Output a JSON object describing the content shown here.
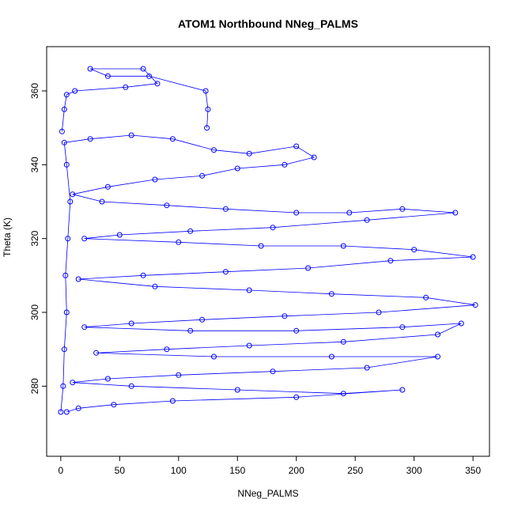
{
  "chart_data": {
    "type": "scatter",
    "title": "ATOM1 Northbound NNeg_PALMS",
    "xlabel": "NNeg_PALMS",
    "ylabel": "Theta (K)",
    "xlim": [
      -12,
      364
    ],
    "ylim": [
      261,
      372
    ],
    "xticks": [
      0,
      50,
      100,
      150,
      200,
      250,
      300,
      350
    ],
    "yticks": [
      280,
      300,
      320,
      340,
      360
    ],
    "grid": false,
    "legend": "none",
    "marker": "open-circle",
    "connected": true,
    "color": "#0000ff",
    "series": [
      {
        "values": [
          {
            "x": 0,
            "y": 273
          },
          {
            "x": 2,
            "y": 280
          },
          {
            "x": 3,
            "y": 290
          },
          {
            "x": 5,
            "y": 300
          },
          {
            "x": 4,
            "y": 310
          },
          {
            "x": 6,
            "y": 320
          },
          {
            "x": 8,
            "y": 330
          },
          {
            "x": 5,
            "y": 340
          },
          {
            "x": 3,
            "y": 346
          },
          {
            "x": 25,
            "y": 347
          },
          {
            "x": 60,
            "y": 348
          },
          {
            "x": 95,
            "y": 347
          },
          {
            "x": 130,
            "y": 344
          },
          {
            "x": 160,
            "y": 343
          },
          {
            "x": 200,
            "y": 345
          },
          {
            "x": 215,
            "y": 342
          },
          {
            "x": 190,
            "y": 340
          },
          {
            "x": 150,
            "y": 339
          },
          {
            "x": 120,
            "y": 337
          },
          {
            "x": 80,
            "y": 336
          },
          {
            "x": 40,
            "y": 334
          },
          {
            "x": 10,
            "y": 332
          },
          {
            "x": 35,
            "y": 330
          },
          {
            "x": 90,
            "y": 329
          },
          {
            "x": 140,
            "y": 328
          },
          {
            "x": 200,
            "y": 327
          },
          {
            "x": 245,
            "y": 327
          },
          {
            "x": 290,
            "y": 328
          },
          {
            "x": 335,
            "y": 327
          },
          {
            "x": 260,
            "y": 325
          },
          {
            "x": 180,
            "y": 323
          },
          {
            "x": 110,
            "y": 322
          },
          {
            "x": 50,
            "y": 321
          },
          {
            "x": 20,
            "y": 320
          },
          {
            "x": 100,
            "y": 319
          },
          {
            "x": 170,
            "y": 318
          },
          {
            "x": 240,
            "y": 318
          },
          {
            "x": 300,
            "y": 317
          },
          {
            "x": 350,
            "y": 315
          },
          {
            "x": 280,
            "y": 314
          },
          {
            "x": 210,
            "y": 312
          },
          {
            "x": 140,
            "y": 311
          },
          {
            "x": 70,
            "y": 310
          },
          {
            "x": 15,
            "y": 309
          },
          {
            "x": 80,
            "y": 307
          },
          {
            "x": 160,
            "y": 306
          },
          {
            "x": 230,
            "y": 305
          },
          {
            "x": 310,
            "y": 304
          },
          {
            "x": 352,
            "y": 302
          },
          {
            "x": 270,
            "y": 300
          },
          {
            "x": 190,
            "y": 299
          },
          {
            "x": 120,
            "y": 298
          },
          {
            "x": 60,
            "y": 297
          },
          {
            "x": 20,
            "y": 296
          },
          {
            "x": 110,
            "y": 295
          },
          {
            "x": 200,
            "y": 295
          },
          {
            "x": 290,
            "y": 296
          },
          {
            "x": 340,
            "y": 297
          },
          {
            "x": 320,
            "y": 294
          },
          {
            "x": 240,
            "y": 292
          },
          {
            "x": 160,
            "y": 291
          },
          {
            "x": 90,
            "y": 290
          },
          {
            "x": 30,
            "y": 289
          },
          {
            "x": 130,
            "y": 288
          },
          {
            "x": 230,
            "y": 288
          },
          {
            "x": 320,
            "y": 288
          },
          {
            "x": 260,
            "y": 285
          },
          {
            "x": 180,
            "y": 284
          },
          {
            "x": 100,
            "y": 283
          },
          {
            "x": 40,
            "y": 282
          },
          {
            "x": 10,
            "y": 281
          },
          {
            "x": 60,
            "y": 280
          },
          {
            "x": 150,
            "y": 279
          },
          {
            "x": 240,
            "y": 278
          },
          {
            "x": 290,
            "y": 279
          },
          {
            "x": 200,
            "y": 277
          },
          {
            "x": 95,
            "y": 276
          },
          {
            "x": 45,
            "y": 275
          },
          {
            "x": 15,
            "y": 274
          },
          {
            "x": 5,
            "y": 273
          }
        ]
      },
      {
        "values": [
          {
            "x": 1,
            "y": 349
          },
          {
            "x": 3,
            "y": 355
          },
          {
            "x": 5,
            "y": 359
          },
          {
            "x": 12,
            "y": 360
          },
          {
            "x": 55,
            "y": 361
          },
          {
            "x": 82,
            "y": 362
          },
          {
            "x": 70,
            "y": 366
          },
          {
            "x": 25,
            "y": 366
          },
          {
            "x": 40,
            "y": 364
          },
          {
            "x": 75,
            "y": 364
          },
          {
            "x": 123,
            "y": 360
          },
          {
            "x": 125,
            "y": 355
          },
          {
            "x": 124,
            "y": 350
          }
        ]
      }
    ]
  }
}
